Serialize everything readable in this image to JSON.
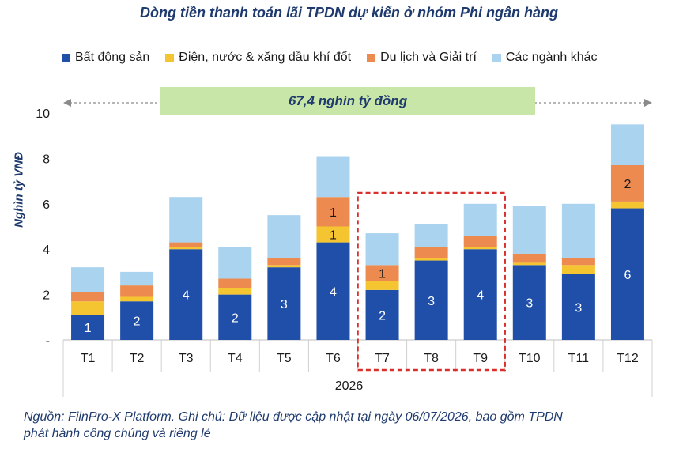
{
  "title": "Dòng tiền thanh toán lãi TPDN dự kiến ở nhóm Phi ngân hàng",
  "total_band_label": "67,4 nghìn tỷ đồng",
  "source_note": "Nguồn: FiinPro-X Platform. Ghi chú: Dữ liệu được cập nhật tại ngày 06/07/2026, bao gồm TPDN phát hành công chúng và riêng lẻ",
  "colors": {
    "bat_dong_san": "#1f4fa8",
    "dien_nuoc": "#f5c531",
    "du_lich": "#ec8a4f",
    "khac": "#a9d3ef",
    "highlight_box": "#d9302c"
  },
  "chart_data": {
    "type": "bar",
    "stacked": true,
    "categories": [
      "T1",
      "T2",
      "T3",
      "T4",
      "T5",
      "T6",
      "T7",
      "T8",
      "T9",
      "T10",
      "T11",
      "T12"
    ],
    "series": [
      {
        "name": "Bất động sản",
        "color": "#1f4fa8",
        "values": [
          1.1,
          1.7,
          4.0,
          2.0,
          3.2,
          4.3,
          2.2,
          3.5,
          4.0,
          3.3,
          2.9,
          5.8
        ]
      },
      {
        "name": "Điện, nước & xăng dầu khí đốt",
        "color": "#f5c531",
        "values": [
          0.6,
          0.2,
          0.1,
          0.3,
          0.1,
          0.7,
          0.4,
          0.1,
          0.1,
          0.1,
          0.4,
          0.3
        ]
      },
      {
        "name": "Du lịch và Giải trí",
        "color": "#ec8a4f",
        "values": [
          0.4,
          0.5,
          0.2,
          0.4,
          0.3,
          1.3,
          0.7,
          0.5,
          0.5,
          0.4,
          0.3,
          1.6
        ]
      },
      {
        "name": "Các ngành khác",
        "color": "#a9d3ef",
        "values": [
          1.1,
          0.6,
          2.0,
          1.4,
          1.9,
          1.8,
          1.4,
          1.0,
          1.4,
          2.1,
          2.4,
          1.8
        ]
      }
    ],
    "data_labels": [
      {
        "category": "T1",
        "series": "Bất động sản",
        "text": "1"
      },
      {
        "category": "T2",
        "series": "Bất động sản",
        "text": "2"
      },
      {
        "category": "T3",
        "series": "Bất động sản",
        "text": "4"
      },
      {
        "category": "T4",
        "series": "Bất động sản",
        "text": "2"
      },
      {
        "category": "T5",
        "series": "Bất động sản",
        "text": "3"
      },
      {
        "category": "T6",
        "series": "Bất động sản",
        "text": "4"
      },
      {
        "category": "T6",
        "series": "Điện, nước & xăng dầu khí đốt",
        "text": "1"
      },
      {
        "category": "T6",
        "series": "Du lịch và Giải trí",
        "text": "1"
      },
      {
        "category": "T7",
        "series": "Bất động sản",
        "text": "2"
      },
      {
        "category": "T7",
        "series": "Du lịch và Giải trí",
        "text": "1"
      },
      {
        "category": "T8",
        "series": "Bất động sản",
        "text": "3"
      },
      {
        "category": "T9",
        "series": "Bất động sản",
        "text": "4"
      },
      {
        "category": "T10",
        "series": "Bất động sản",
        "text": "3"
      },
      {
        "category": "T11",
        "series": "Bất động sản",
        "text": "3"
      },
      {
        "category": "T12",
        "series": "Bất động sản",
        "text": "6"
      },
      {
        "category": "T12",
        "series": "Du lịch và Giải trí",
        "text": "2"
      }
    ],
    "highlight": {
      "categories": [
        "T7",
        "T8",
        "T9"
      ]
    },
    "total_range": {
      "from": "T1",
      "to": "T12",
      "label": "67,4 nghìn tỷ đồng"
    },
    "xlabel": "2026",
    "ylabel": "Nghìn tỷ VNĐ",
    "ylim": [
      0,
      10
    ],
    "yticks": [
      "-",
      "2",
      "4",
      "6",
      "8",
      "10"
    ],
    "legend_position": "top",
    "grid": false
  }
}
